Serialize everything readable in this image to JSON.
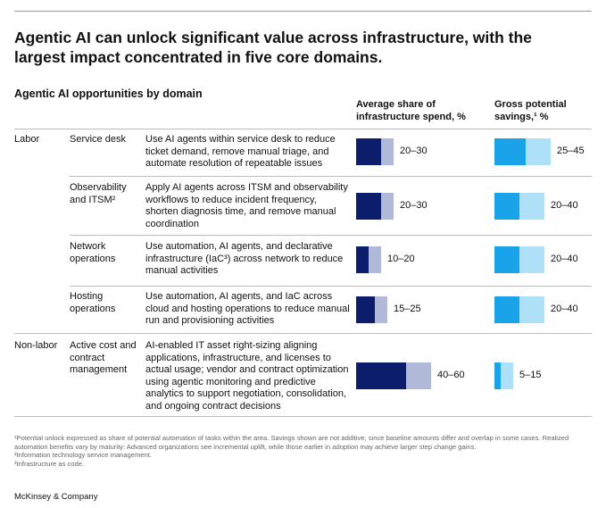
{
  "title": "Agentic AI can unlock significant value across infrastructure, with the largest impact concentrated in five core domains.",
  "subtitle": "Agentic AI opportunities by domain",
  "columns": {
    "spend": "Average share of infrastructure spend, %",
    "savings": "Gross potential savings,¹ %"
  },
  "groups": [
    {
      "label": "Labor",
      "rows": [
        {
          "domain": "Service desk",
          "description": "Use AI agents within service desk to reduce ticket demand, remove manual triage, and automate resolution of repeatable issues",
          "spend": {
            "low": 20,
            "high": 30,
            "label": "20–30"
          },
          "savings": {
            "low": 25,
            "high": 45,
            "label": "25–45"
          }
        },
        {
          "domain": "Observability and ITSM²",
          "description": "Apply AI agents across ITSM and observability workflows to reduce incident frequency, shorten diagnosis time, and remove manual coordination",
          "spend": {
            "low": 20,
            "high": 30,
            "label": "20–30"
          },
          "savings": {
            "low": 20,
            "high": 40,
            "label": "20–40"
          }
        },
        {
          "domain": "Network operations",
          "description": "Use automation, AI agents, and declarative infrastructure (IaC³) across network to reduce manual activities",
          "spend": {
            "low": 10,
            "high": 20,
            "label": "10–20"
          },
          "savings": {
            "low": 20,
            "high": 40,
            "label": "20–40"
          }
        },
        {
          "domain": "Hosting operations",
          "description": "Use automation, AI agents, and IaC across cloud and hosting operations to reduce manual run and provisioning activities",
          "spend": {
            "low": 15,
            "high": 25,
            "label": "15–25"
          },
          "savings": {
            "low": 20,
            "high": 40,
            "label": "20–40"
          }
        }
      ]
    },
    {
      "label": "Non-labor",
      "rows": [
        {
          "domain": "Active cost and contract management",
          "description": "AI-enabled IT asset right-sizing aligning applications, infrastructure, and licenses to actual usage; vendor and contract optimization using agentic monitoring and predictive analytics to support negotiation, consolidation, and ongoing contract decisions",
          "spend": {
            "low": 40,
            "high": 60,
            "label": "40–60"
          },
          "savings": {
            "low": 5,
            "high": 15,
            "label": "5–15"
          }
        }
      ]
    }
  ],
  "footnotes": [
    "¹Potential unlock expressed as share of potential automation of tasks within the area. Savings shown are not additive, since baseline amounts differ and overlap in some cases. Realized automation benefits vary by maturity: Advanced organizations see incremental uplift, while those earlier in adoption may achieve larger step change gains.",
    "²Information technology service management.",
    "³Infrastructure as code."
  ],
  "source": "McKinsey & Company"
}
